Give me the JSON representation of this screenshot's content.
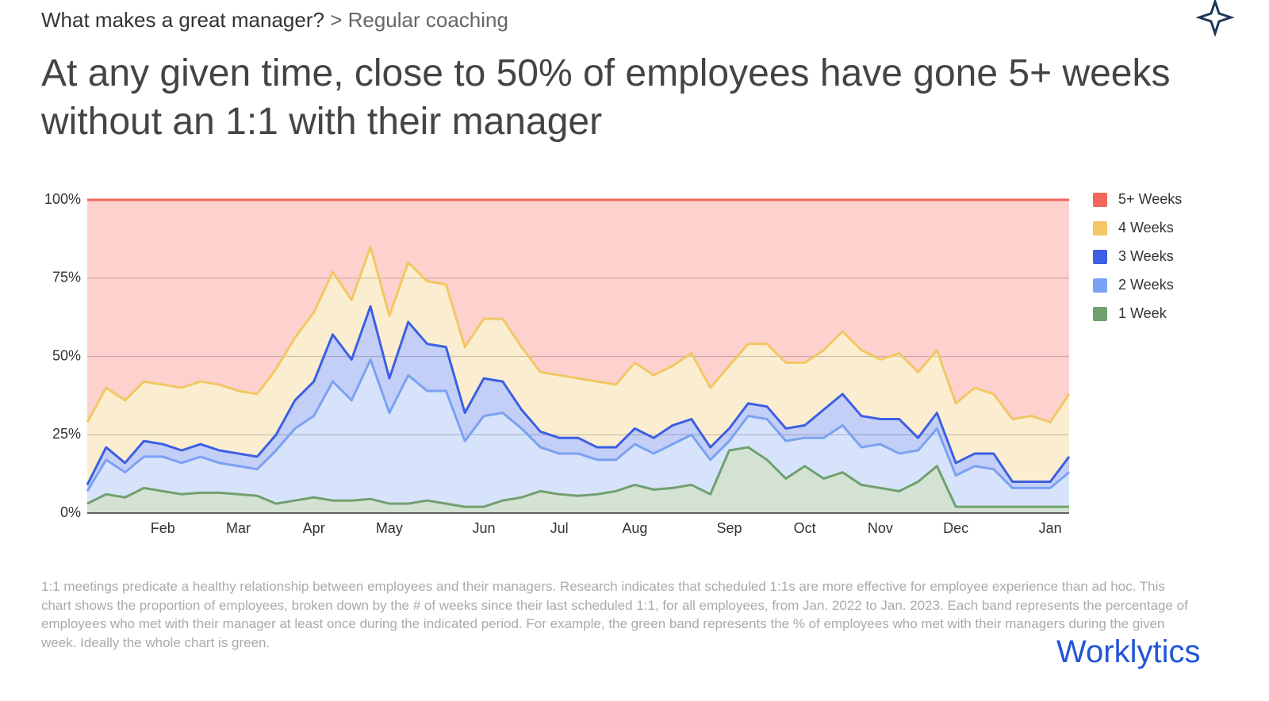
{
  "header": {
    "section": "What makes a great manager?",
    "subsection": "> Regular coaching"
  },
  "title": "At any given time, close to 50% of employees have gone 5+ weeks without an 1:1 with their manager",
  "footnote": "1:1 meetings predicate a healthy relationship between employees and their managers. Research indicates that scheduled 1:1s are more effective for employee experience than ad hoc. This chart shows the proportion of employees, broken down by the # of weeks since their last scheduled 1:1, for all employees, from Jan. 2022 to Jan. 2023. Each band represents the percentage of employees who met with their manager at least once during the indicated period. For example, the green band represents the % of employees who met with their managers during the given week. Ideally the whole chart is green.",
  "logo": "Worklytics",
  "chart_data": {
    "type": "stacked_area",
    "categories": [
      null,
      null,
      null,
      null,
      "Feb",
      null,
      null,
      null,
      "Mar",
      null,
      null,
      null,
      "Apr",
      null,
      null,
      null,
      "May",
      null,
      null,
      null,
      null,
      "Jun",
      null,
      null,
      null,
      "Jul",
      null,
      null,
      null,
      "Aug",
      null,
      null,
      null,
      null,
      "Sep",
      null,
      null,
      null,
      "Oct",
      null,
      null,
      null,
      "Nov",
      null,
      null,
      null,
      "Dec",
      null,
      null,
      null,
      null,
      "Jan",
      null
    ],
    "series": [
      {
        "name": "5+ Weeks",
        "color": "#f4665c",
        "values": [
          71,
          60,
          64,
          58,
          59,
          60,
          58,
          59,
          61,
          62,
          54,
          44,
          36,
          23,
          32,
          15,
          37,
          20,
          26,
          27,
          47,
          38,
          38,
          47,
          55,
          56,
          57,
          58,
          59,
          52,
          56,
          53,
          49,
          60,
          53,
          46,
          46,
          52,
          52,
          48,
          42,
          48,
          51,
          49,
          55,
          48,
          65,
          60,
          62,
          70,
          69,
          71,
          62
        ]
      },
      {
        "name": "4 Weeks",
        "color": "#f2c764",
        "values": [
          20,
          19,
          20,
          19,
          19,
          20,
          20,
          21,
          20,
          20,
          21,
          20,
          22,
          20,
          19,
          19,
          20,
          19,
          20,
          20,
          21,
          19,
          20,
          20,
          19,
          20,
          19,
          21,
          20,
          21,
          20,
          19,
          21,
          19,
          20,
          19,
          20,
          21,
          20,
          19,
          20,
          21,
          19,
          21,
          21,
          20,
          19,
          21,
          19,
          20,
          21,
          19,
          20
        ]
      },
      {
        "name": "3 Weeks",
        "color": "#3c5fe3",
        "values": [
          2,
          4,
          3,
          5,
          4,
          4,
          4,
          4,
          4,
          4,
          5,
          9,
          11,
          15,
          13,
          17,
          11,
          17,
          15,
          14,
          9,
          12,
          10,
          6,
          5,
          5,
          5,
          4,
          4,
          5,
          5,
          6,
          5,
          4,
          4,
          4,
          4,
          4,
          4,
          9,
          10,
          10,
          8,
          11,
          4,
          5,
          4,
          4,
          5,
          2,
          2,
          2,
          5
        ]
      },
      {
        "name": "2 Weeks",
        "color": "#7ba1f2",
        "values": [
          4,
          11,
          8,
          10,
          11,
          10,
          11.5,
          9.5,
          9,
          8.5,
          17,
          23,
          26,
          38,
          32,
          44.5,
          29,
          41,
          35,
          36,
          21,
          29,
          28,
          22,
          14,
          13,
          13.5,
          11,
          10,
          13,
          11.5,
          14,
          16,
          11,
          3,
          10,
          13,
          12,
          9,
          13,
          15,
          12,
          14,
          12,
          10,
          12,
          10,
          13,
          12,
          6,
          6,
          6,
          11
        ]
      },
      {
        "name": "1 Week",
        "color": "#70a06f",
        "values": [
          3,
          6,
          5,
          8,
          7,
          6,
          6.5,
          6.5,
          6,
          5.5,
          3,
          4,
          5,
          4,
          4,
          4.5,
          3,
          3,
          4,
          3,
          2,
          2,
          4,
          5,
          7,
          6,
          5.5,
          6,
          7,
          9,
          7.5,
          8,
          9,
          6,
          20,
          21,
          17,
          11,
          15,
          11,
          13,
          9,
          8,
          7,
          10,
          15,
          2,
          2,
          2,
          2,
          2,
          2,
          2
        ]
      }
    ],
    "ylim": [
      0,
      100
    ],
    "yticks": [
      {
        "value": 0,
        "label": "0%"
      },
      {
        "value": 25,
        "label": "25%"
      },
      {
        "value": 50,
        "label": "50%"
      },
      {
        "value": 75,
        "label": "75%"
      },
      {
        "value": 100,
        "label": "100%"
      }
    ],
    "grid": true,
    "legend": "right"
  }
}
